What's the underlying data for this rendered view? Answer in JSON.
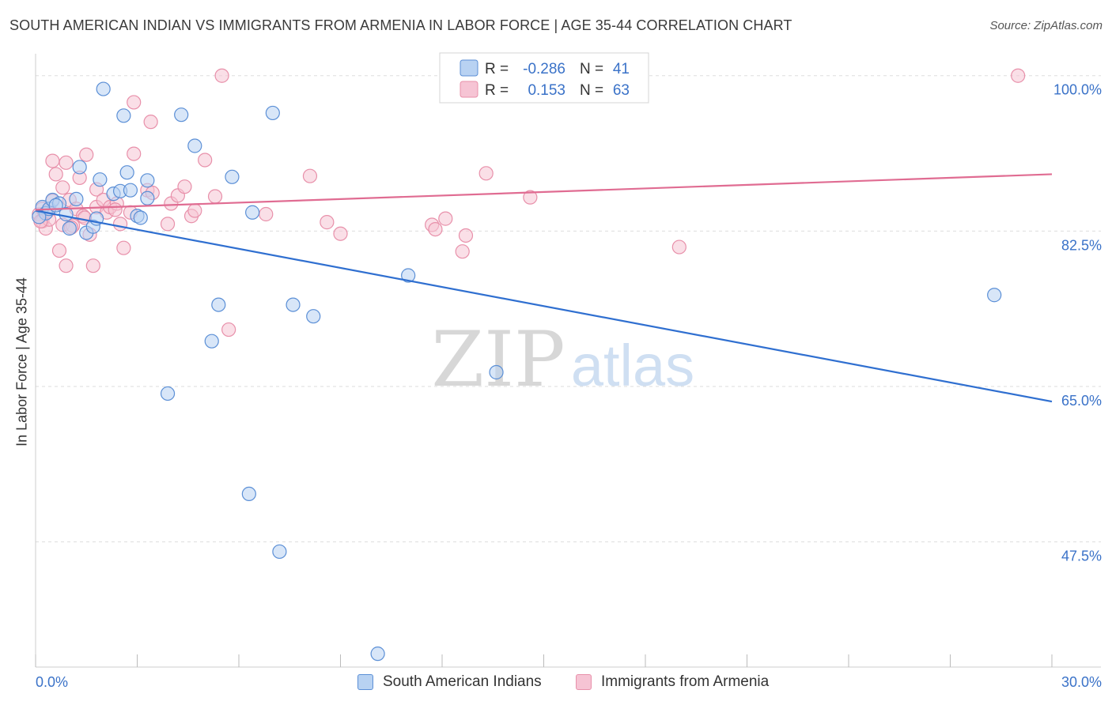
{
  "header": {
    "title": "SOUTH AMERICAN INDIAN VS IMMIGRANTS FROM ARMENIA IN LABOR FORCE | AGE 35-44 CORRELATION CHART",
    "source": "Source: ZipAtlas.com"
  },
  "watermark": {
    "zip": "ZIP",
    "atlas": "atlas"
  },
  "colors": {
    "blue_fill": "#b8d2f2",
    "blue_stroke": "#5b8fd6",
    "blue_line": "#2f6fd0",
    "pink_fill": "#f6c4d4",
    "pink_stroke": "#e890aa",
    "pink_line": "#e06c92",
    "axis_label": "#3a72c8",
    "grid": "#dddddd"
  },
  "stats_legend": [
    {
      "r_label": "R =",
      "r_value": "-0.286",
      "n_label": "N =",
      "n_value": "41"
    },
    {
      "r_label": "R =",
      "r_value": "0.153",
      "n_label": "N =",
      "n_value": "63"
    }
  ],
  "chart_data": {
    "type": "scatter",
    "title": "SOUTH AMERICAN INDIAN VS IMMIGRANTS FROM ARMENIA IN LABOR FORCE | AGE 35-44 CORRELATION CHART",
    "xlabel": "",
    "ylabel": "In Labor Force | Age 35-44",
    "xlim": [
      0,
      30
    ],
    "ylim": [
      33.4,
      101.4
    ],
    "x_tick_labels": [
      "0.0%",
      "30.0%"
    ],
    "y_ticks": [
      100.0,
      82.5,
      65.0,
      47.5
    ],
    "y_tick_labels": [
      "100.0%",
      "82.5%",
      "65.0%",
      "47.5%"
    ],
    "grid": true,
    "legend_position": "bottom",
    "series": [
      {
        "name": "South American Indians",
        "trend": {
          "x": [
            0,
            30
          ],
          "y": [
            84.8,
            63.3
          ]
        },
        "points": [
          [
            0.2,
            85.2
          ],
          [
            0.3,
            84.5
          ],
          [
            0.4,
            85.0
          ],
          [
            0.5,
            86.0
          ],
          [
            0.7,
            85.6
          ],
          [
            0.9,
            84.4
          ],
          [
            1.0,
            82.8
          ],
          [
            1.2,
            86.1
          ],
          [
            1.3,
            89.7
          ],
          [
            1.5,
            82.3
          ],
          [
            1.7,
            83.0
          ],
          [
            1.8,
            83.9
          ],
          [
            1.9,
            88.3
          ],
          [
            2.0,
            98.5
          ],
          [
            2.3,
            86.7
          ],
          [
            2.5,
            87.0
          ],
          [
            2.6,
            95.5
          ],
          [
            2.7,
            89.1
          ],
          [
            2.8,
            87.1
          ],
          [
            3.0,
            84.2
          ],
          [
            3.1,
            84.0
          ],
          [
            3.3,
            88.2
          ],
          [
            3.3,
            86.2
          ],
          [
            3.9,
            64.2
          ],
          [
            4.3,
            95.6
          ],
          [
            4.7,
            92.1
          ],
          [
            5.2,
            70.1
          ],
          [
            5.4,
            74.2
          ],
          [
            5.8,
            88.6
          ],
          [
            6.3,
            52.9
          ],
          [
            6.4,
            84.6
          ],
          [
            7.0,
            95.8
          ],
          [
            7.2,
            46.4
          ],
          [
            7.6,
            74.2
          ],
          [
            8.2,
            72.9
          ],
          [
            10.1,
            34.9
          ],
          [
            11.0,
            77.5
          ],
          [
            13.6,
            66.6
          ],
          [
            28.3,
            75.3
          ],
          [
            0.1,
            84.1
          ],
          [
            0.6,
            85.4
          ]
        ]
      },
      {
        "name": "Immigrants from Armenia",
        "trend": {
          "x": [
            0,
            30
          ],
          "y": [
            84.9,
            88.9
          ]
        },
        "points": [
          [
            0.1,
            84.4
          ],
          [
            0.2,
            85.0
          ],
          [
            0.2,
            83.6
          ],
          [
            0.3,
            82.8
          ],
          [
            0.4,
            83.8
          ],
          [
            0.5,
            85.9
          ],
          [
            0.5,
            90.4
          ],
          [
            0.6,
            88.9
          ],
          [
            0.7,
            80.3
          ],
          [
            0.8,
            83.2
          ],
          [
            0.8,
            87.4
          ],
          [
            0.9,
            78.6
          ],
          [
            0.9,
            90.2
          ],
          [
            1.0,
            86.0
          ],
          [
            1.1,
            83.1
          ],
          [
            1.2,
            85.0
          ],
          [
            1.3,
            88.5
          ],
          [
            1.4,
            84.2
          ],
          [
            1.5,
            91.1
          ],
          [
            1.6,
            82.1
          ],
          [
            1.7,
            78.6
          ],
          [
            1.8,
            87.2
          ],
          [
            1.8,
            85.2
          ],
          [
            2.0,
            86.0
          ],
          [
            2.1,
            84.6
          ],
          [
            2.2,
            85.2
          ],
          [
            2.4,
            85.6
          ],
          [
            2.5,
            83.3
          ],
          [
            2.6,
            80.6
          ],
          [
            2.8,
            84.6
          ],
          [
            2.9,
            97.0
          ],
          [
            2.9,
            91.2
          ],
          [
            3.3,
            87.1
          ],
          [
            3.4,
            94.8
          ],
          [
            3.9,
            83.3
          ],
          [
            4.0,
            85.6
          ],
          [
            4.2,
            86.5
          ],
          [
            4.4,
            87.5
          ],
          [
            4.6,
            84.2
          ],
          [
            4.7,
            84.8
          ],
          [
            5.0,
            90.5
          ],
          [
            5.3,
            86.4
          ],
          [
            5.5,
            100.0
          ],
          [
            5.7,
            71.4
          ],
          [
            6.8,
            84.4
          ],
          [
            8.1,
            88.7
          ],
          [
            8.6,
            83.5
          ],
          [
            9.0,
            82.2
          ],
          [
            11.7,
            83.2
          ],
          [
            11.8,
            82.7
          ],
          [
            12.1,
            83.9
          ],
          [
            12.6,
            80.2
          ],
          [
            12.7,
            82.0
          ],
          [
            13.3,
            89.0
          ],
          [
            14.6,
            86.3
          ],
          [
            19.0,
            80.7
          ],
          [
            29.0,
            100.0
          ],
          [
            0.15,
            83.6
          ],
          [
            0.35,
            84.7
          ],
          [
            1.05,
            82.9
          ],
          [
            1.45,
            84.0
          ],
          [
            2.35,
            84.9
          ],
          [
            3.45,
            86.8
          ]
        ]
      }
    ]
  }
}
